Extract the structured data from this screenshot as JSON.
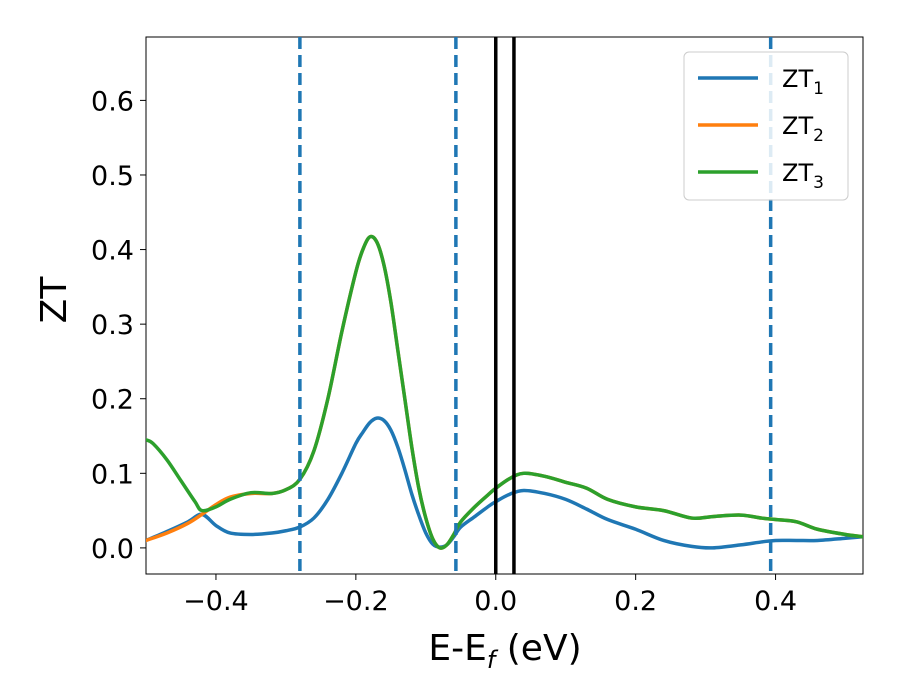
{
  "chart_data": {
    "type": "line",
    "xlabel": "E-E",
    "xlabel_sub": "f",
    "xlabel_unit": " (eV)",
    "ylabel": "ZT",
    "xlim": [
      -0.5,
      0.525
    ],
    "ylim": [
      -0.035,
      0.685
    ],
    "xticks": [
      -0.4,
      -0.2,
      0.0,
      0.2,
      0.4
    ],
    "xtick_labels": [
      "−0.4",
      "−0.2",
      "0.0",
      "0.2",
      "0.4"
    ],
    "yticks": [
      0.0,
      0.1,
      0.2,
      0.3,
      0.4,
      0.5,
      0.6
    ],
    "ytick_labels": [
      "0.0",
      "0.1",
      "0.2",
      "0.3",
      "0.4",
      "0.5",
      "0.6"
    ],
    "grid": false,
    "legend_position": "top-right",
    "vlines": [
      {
        "x": -0.28,
        "style": "dashed",
        "color": "#1f77b4"
      },
      {
        "x": -0.057,
        "style": "dashed",
        "color": "#1f77b4"
      },
      {
        "x": 0.0,
        "style": "solid",
        "color": "#000000"
      },
      {
        "x": 0.026,
        "style": "solid",
        "color": "#000000"
      },
      {
        "x": 0.393,
        "style": "dashed",
        "color": "#1f77b4"
      }
    ],
    "series": [
      {
        "name": "ZT",
        "name_sub": "1",
        "color": "#1f77b4",
        "x": [
          -0.5,
          -0.47,
          -0.44,
          -0.42,
          -0.4,
          -0.38,
          -0.35,
          -0.32,
          -0.3,
          -0.28,
          -0.26,
          -0.24,
          -0.22,
          -0.2,
          -0.19,
          -0.18,
          -0.17,
          -0.16,
          -0.15,
          -0.14,
          -0.13,
          -0.12,
          -0.11,
          -0.1,
          -0.09,
          -0.08,
          -0.07,
          -0.06,
          -0.05,
          -0.03,
          -0.01,
          0.0,
          0.02,
          0.04,
          0.07,
          0.1,
          0.13,
          0.16,
          0.2,
          0.24,
          0.28,
          0.31,
          0.35,
          0.38,
          0.4,
          0.43,
          0.46,
          0.5,
          0.525
        ],
        "y": [
          0.01,
          0.022,
          0.035,
          0.045,
          0.03,
          0.02,
          0.018,
          0.02,
          0.023,
          0.028,
          0.04,
          0.065,
          0.1,
          0.14,
          0.155,
          0.168,
          0.174,
          0.171,
          0.158,
          0.135,
          0.105,
          0.072,
          0.044,
          0.02,
          0.005,
          0.001,
          0.004,
          0.015,
          0.028,
          0.042,
          0.056,
          0.062,
          0.072,
          0.077,
          0.073,
          0.065,
          0.052,
          0.038,
          0.025,
          0.01,
          0.002,
          0.0,
          0.004,
          0.008,
          0.01,
          0.01,
          0.01,
          0.013,
          0.015
        ]
      },
      {
        "name": "ZT",
        "name_sub": "2",
        "color": "#ff7f0e",
        "x": [
          -0.5,
          -0.47,
          -0.44,
          -0.42,
          -0.4,
          -0.38,
          -0.35,
          -0.32,
          -0.3,
          -0.28,
          -0.26,
          -0.24,
          -0.22,
          -0.2,
          -0.19,
          -0.18,
          -0.17,
          -0.16,
          -0.15,
          -0.14,
          -0.13,
          -0.12,
          -0.11,
          -0.1,
          -0.09,
          -0.08,
          -0.07,
          -0.06,
          -0.05,
          -0.03,
          -0.01,
          0.0,
          0.02,
          0.04,
          0.07,
          0.1,
          0.13,
          0.16,
          0.2,
          0.24,
          0.28,
          0.31,
          0.35,
          0.38,
          0.4,
          0.43,
          0.46,
          0.5,
          0.525
        ],
        "y": [
          0.01,
          0.02,
          0.033,
          0.045,
          0.058,
          0.068,
          0.073,
          0.073,
          0.078,
          0.092,
          0.13,
          0.2,
          0.29,
          0.37,
          0.4,
          0.417,
          0.41,
          0.38,
          0.33,
          0.265,
          0.2,
          0.135,
          0.08,
          0.04,
          0.012,
          0.0,
          0.004,
          0.018,
          0.035,
          0.055,
          0.072,
          0.08,
          0.093,
          0.1,
          0.096,
          0.088,
          0.08,
          0.065,
          0.055,
          0.05,
          0.04,
          0.042,
          0.044,
          0.04,
          0.038,
          0.035,
          0.025,
          0.018,
          0.015
        ]
      },
      {
        "name": "ZT",
        "name_sub": "3",
        "color": "#2ca02c",
        "x": [
          -0.5,
          -0.49,
          -0.47,
          -0.45,
          -0.43,
          -0.42,
          -0.4,
          -0.38,
          -0.35,
          -0.32,
          -0.3,
          -0.28,
          -0.26,
          -0.24,
          -0.22,
          -0.2,
          -0.19,
          -0.18,
          -0.17,
          -0.16,
          -0.15,
          -0.14,
          -0.13,
          -0.12,
          -0.11,
          -0.1,
          -0.09,
          -0.08,
          -0.07,
          -0.06,
          -0.05,
          -0.03,
          -0.01,
          0.0,
          0.02,
          0.04,
          0.07,
          0.1,
          0.13,
          0.16,
          0.2,
          0.24,
          0.28,
          0.31,
          0.35,
          0.38,
          0.4,
          0.43,
          0.46,
          0.5,
          0.525
        ],
        "y": [
          0.145,
          0.14,
          0.118,
          0.09,
          0.062,
          0.05,
          0.055,
          0.065,
          0.074,
          0.073,
          0.078,
          0.092,
          0.13,
          0.2,
          0.29,
          0.37,
          0.4,
          0.417,
          0.41,
          0.38,
          0.33,
          0.265,
          0.2,
          0.135,
          0.08,
          0.04,
          0.012,
          0.0,
          0.004,
          0.018,
          0.035,
          0.055,
          0.072,
          0.08,
          0.093,
          0.1,
          0.096,
          0.088,
          0.08,
          0.065,
          0.055,
          0.05,
          0.04,
          0.042,
          0.044,
          0.04,
          0.038,
          0.035,
          0.025,
          0.018,
          0.015
        ]
      }
    ]
  }
}
